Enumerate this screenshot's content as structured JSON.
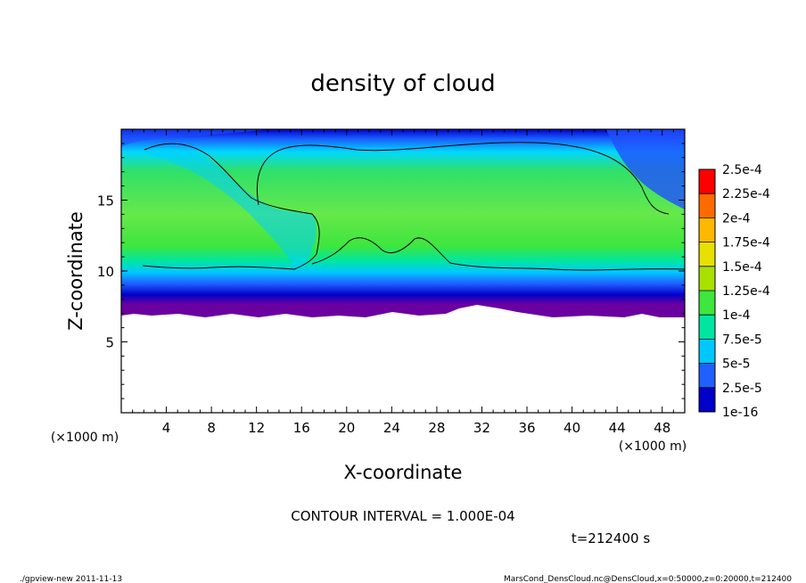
{
  "chart_data": {
    "type": "heatmap",
    "title": "density of cloud",
    "xlabel": "X-coordinate",
    "ylabel": "Z-coordinate",
    "x_unit": "(×1000 m)",
    "y_unit": "(×1000 m)",
    "xlim": [
      0,
      50
    ],
    "ylim": [
      0,
      20
    ],
    "x_ticks": [
      4,
      8,
      12,
      16,
      20,
      24,
      28,
      32,
      36,
      40,
      44,
      48
    ],
    "y_ticks": [
      5,
      10,
      15
    ],
    "colorbar": {
      "labels": [
        "2.5e-4",
        "2.25e-4",
        "2e-4",
        "1.75e-4",
        "1.5e-4",
        "1.25e-4",
        "1e-4",
        "7.5e-5",
        "5e-5",
        "2.5e-5",
        "1e-16"
      ],
      "colors": [
        "#ff0000",
        "#ff6a00",
        "#ffb800",
        "#e8e000",
        "#a8e000",
        "#3ee63e",
        "#00e6a0",
        "#00c8ff",
        "#2060ff",
        "#0000c8",
        "#6a00a0"
      ]
    },
    "contour_interval": "CONTOUR INTERVAL = 1.000E-04",
    "time_label": "t=212400 s",
    "cloud_base_z": 7,
    "cloud_top_z": 19.5,
    "contour_level": 0.0001
  },
  "footer": {
    "left": "./gpview-new  2011-11-13",
    "right": "MarsCond_DensCloud.nc@DensCloud,x=0:50000,z=0:20000,t=212400"
  }
}
